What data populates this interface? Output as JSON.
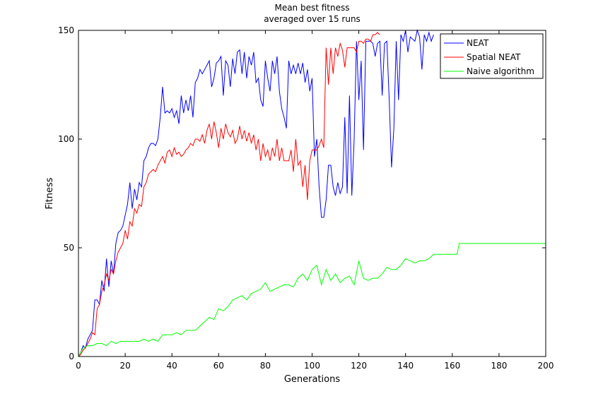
{
  "chart_data": {
    "type": "line",
    "title": "Mean best fitness",
    "subtitle": "averaged over 15 runs",
    "xlabel": "Generations",
    "ylabel": "Fitness",
    "xlim": [
      0,
      200
    ],
    "ylim": [
      0,
      150
    ],
    "xticks": [
      0,
      20,
      40,
      60,
      80,
      100,
      120,
      140,
      160,
      180,
      200
    ],
    "yticks": [
      0,
      50,
      100,
      150
    ],
    "grid": false,
    "legend": "top-right",
    "series": [
      {
        "name": "NEAT",
        "color": "#0000ff",
        "x": [
          0,
          1,
          2,
          3,
          4,
          5,
          6,
          7,
          8,
          9,
          10,
          11,
          12,
          13,
          14,
          15,
          16,
          17,
          18,
          19,
          20,
          21,
          22,
          23,
          24,
          25,
          26,
          27,
          28,
          29,
          30,
          31,
          32,
          33,
          34,
          35,
          36,
          37,
          38,
          39,
          40,
          41,
          42,
          43,
          44,
          45,
          46,
          47,
          48,
          49,
          50,
          51,
          52,
          53,
          54,
          55,
          56,
          57,
          58,
          59,
          60,
          61,
          62,
          63,
          64,
          65,
          66,
          67,
          68,
          69,
          70,
          71,
          72,
          73,
          74,
          75,
          76,
          77,
          78,
          79,
          80,
          81,
          82,
          83,
          84,
          85,
          86,
          87,
          88,
          89,
          90,
          91,
          92,
          93,
          94,
          95,
          96,
          97,
          98,
          99,
          100,
          101,
          102,
          103,
          104,
          105,
          106,
          107,
          108,
          109,
          110,
          111,
          112,
          113,
          114,
          115,
          116,
          117,
          118,
          119,
          120,
          121,
          122,
          123,
          124,
          125,
          126,
          127,
          128,
          129,
          130,
          131,
          132,
          133,
          134,
          135,
          136,
          137,
          138,
          139,
          140,
          141,
          142,
          143,
          144,
          145,
          146,
          147,
          148,
          149,
          150,
          151,
          152
        ],
        "values": [
          0,
          2,
          5,
          4,
          8,
          10,
          12,
          26,
          26,
          24,
          35,
          30,
          45,
          32,
          44,
          38,
          52,
          57,
          58,
          60,
          65,
          70,
          80,
          68,
          77,
          72,
          80,
          78,
          90,
          92,
          96,
          98,
          98,
          97,
          100,
          110,
          124,
          112,
          113,
          112,
          114,
          110,
          113,
          107,
          120,
          112,
          118,
          113,
          120,
          110,
          126,
          128,
          132,
          130,
          132,
          134,
          136,
          124,
          128,
          135,
          136,
          138,
          120,
          136,
          134,
          124,
          137,
          130,
          140,
          141,
          130,
          140,
          128,
          138,
          134,
          140,
          126,
          128,
          118,
          115,
          136,
          128,
          122,
          136,
          130,
          138,
          122,
          114,
          110,
          105,
          136,
          130,
          134,
          130,
          135,
          130,
          135,
          126,
          132,
          122,
          128,
          92,
          100,
          78,
          64,
          64,
          72,
          88,
          88,
          78,
          74,
          80,
          75,
          78,
          110,
          75,
          120,
          74,
          100,
          145,
          118,
          136,
          95,
          145,
          145,
          145,
          144,
          138,
          144,
          145,
          120,
          144,
          145,
          118,
          87,
          105,
          145,
          118,
          148,
          145,
          150,
          140,
          147,
          146,
          145,
          150,
          147,
          132,
          148,
          145,
          149,
          145,
          148
        ]
      },
      {
        "name": "Spatial NEAT",
        "color": "#ff0000",
        "x": [
          0,
          1,
          2,
          3,
          4,
          5,
          6,
          7,
          8,
          9,
          10,
          11,
          12,
          13,
          14,
          15,
          16,
          17,
          18,
          19,
          20,
          21,
          22,
          23,
          24,
          25,
          26,
          27,
          28,
          29,
          30,
          31,
          32,
          33,
          34,
          35,
          36,
          37,
          38,
          39,
          40,
          41,
          42,
          43,
          44,
          45,
          46,
          47,
          48,
          49,
          50,
          51,
          52,
          53,
          54,
          55,
          56,
          57,
          58,
          59,
          60,
          61,
          62,
          63,
          64,
          65,
          66,
          67,
          68,
          69,
          70,
          71,
          72,
          73,
          74,
          75,
          76,
          77,
          78,
          79,
          80,
          81,
          82,
          83,
          84,
          85,
          86,
          87,
          88,
          89,
          90,
          91,
          92,
          93,
          94,
          95,
          96,
          97,
          98,
          99,
          100,
          101,
          102,
          103,
          104,
          105,
          106,
          107,
          108,
          109,
          110,
          111,
          112,
          113,
          114,
          115,
          116,
          117,
          118,
          119,
          120,
          121,
          122,
          123,
          124,
          125,
          126,
          127,
          128,
          129
        ],
        "values": [
          0,
          1,
          3,
          4,
          6,
          8,
          11,
          10,
          22,
          24,
          30,
          33,
          38,
          35,
          40,
          38,
          44,
          48,
          50,
          52,
          58,
          54,
          62,
          60,
          68,
          66,
          70,
          69,
          78,
          80,
          84,
          85,
          86,
          85,
          88,
          90,
          92,
          89,
          94,
          95,
          92,
          96,
          93,
          94,
          92,
          93,
          95,
          96,
          98,
          97,
          100,
          100,
          99,
          102,
          98,
          104,
          107,
          100,
          108,
          103,
          96,
          105,
          100,
          107,
          103,
          101,
          104,
          98,
          100,
          106,
          100,
          104,
          99,
          103,
          98,
          102,
          95,
          100,
          90,
          98,
          92,
          95,
          90,
          96,
          92,
          100,
          90,
          96,
          90,
          90,
          90,
          95,
          85,
          100,
          88,
          90,
          78,
          88,
          72,
          90,
          95,
          95,
          95,
          97,
          100,
          96,
          142,
          125,
          142,
          130,
          142,
          138,
          144,
          141,
          133,
          142,
          142,
          142,
          142,
          140,
          145,
          145,
          144,
          146,
          146,
          145,
          148,
          148,
          149,
          148
        ]
      },
      {
        "name": "Naive algorithm",
        "color": "#00ff00",
        "x": [
          0,
          2,
          4,
          6,
          8,
          10,
          12,
          14,
          16,
          18,
          20,
          22,
          24,
          26,
          28,
          30,
          32,
          34,
          36,
          38,
          40,
          42,
          44,
          46,
          48,
          50,
          52,
          54,
          56,
          58,
          60,
          62,
          64,
          66,
          68,
          70,
          72,
          74,
          76,
          78,
          80,
          82,
          84,
          86,
          88,
          90,
          92,
          94,
          96,
          98,
          100,
          102,
          104,
          106,
          108,
          110,
          112,
          114,
          116,
          118,
          120,
          122,
          124,
          126,
          128,
          130,
          132,
          134,
          136,
          138,
          140,
          142,
          144,
          146,
          148,
          150,
          152,
          154,
          156,
          158,
          160,
          162,
          163,
          170,
          180,
          190,
          200
        ],
        "values": [
          0,
          4,
          5,
          5,
          6,
          6,
          5,
          7,
          6,
          7,
          7,
          7,
          7,
          7,
          8,
          7,
          8,
          7,
          10,
          10,
          10,
          11,
          10,
          12,
          12,
          12,
          14,
          16,
          18,
          17,
          22,
          21,
          23,
          26,
          27,
          28,
          26,
          29,
          30,
          31,
          34,
          30,
          31,
          32,
          33,
          33,
          32,
          36,
          38,
          35,
          40,
          42,
          33,
          40,
          35,
          38,
          34,
          36,
          37,
          33,
          44,
          36,
          35,
          36,
          36,
          38,
          41,
          40,
          40,
          42,
          45,
          44,
          43,
          44,
          44,
          45,
          47,
          47,
          47,
          47,
          47,
          47,
          52,
          52,
          52,
          52,
          52
        ]
      }
    ]
  }
}
